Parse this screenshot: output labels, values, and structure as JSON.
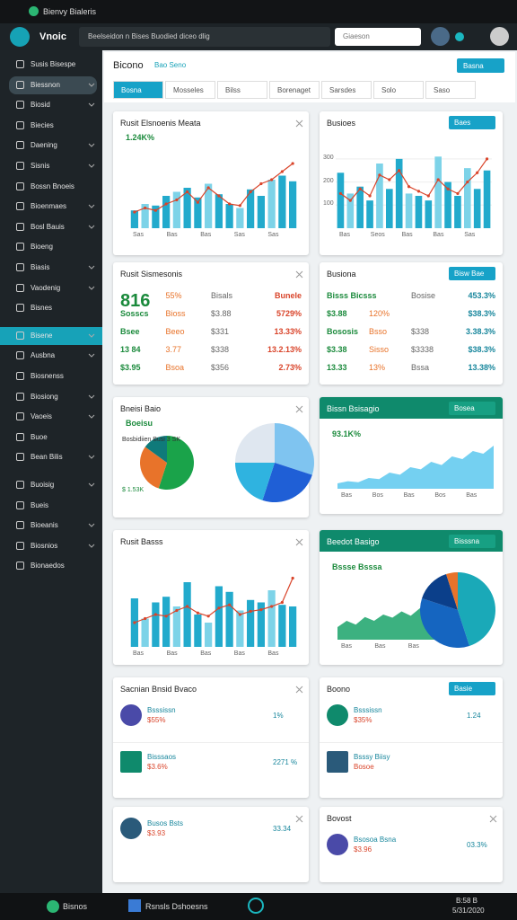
{
  "window": {
    "title": "Bienvy Bialeris"
  },
  "header": {
    "app": "Vnoic",
    "breadcrumb": "Beelseidon n Bises Buodied diceo dlig",
    "search": "Giaeson"
  },
  "sidebar": {
    "items": [
      "Susis Bisespe",
      "Biessnon",
      "Biosid",
      "Biecies",
      "Daening",
      "Sisnis",
      "Bossn Bnoeis",
      "Bioenmaes",
      "Bosl Bauis",
      "Bioeng",
      "Biasis",
      "Vaodenig",
      "Bisnes",
      "Bisene",
      "Ausbna",
      "Biosnenss",
      "Biosiong",
      "Vaoeis",
      "Buoe",
      "Bean Bilis",
      "Buoisig",
      "Bueis",
      "Bioeanis",
      "Biosnios",
      "Bionaedos"
    ],
    "active": [
      1,
      13
    ]
  },
  "main": {
    "title": "Bicono",
    "tag": "Bao Seno",
    "button": "Basna",
    "tabs": [
      "Bosna",
      "Mosseles",
      "Bilss",
      "Borenaget",
      "Sarsdes",
      "Solo",
      "Saso"
    ]
  },
  "cards": [
    {
      "title": "Rusit Elsnoenis Meata",
      "sub": "1.24K%",
      "chart": {
        "kind": "bar-line",
        "bars": [
          22,
          30,
          28,
          40,
          45,
          50,
          38,
          55,
          42,
          30,
          25,
          48,
          40,
          60,
          65,
          58
        ],
        "line": [
          20,
          25,
          22,
          30,
          35,
          45,
          32,
          50,
          40,
          30,
          28,
          45,
          55,
          60,
          70,
          80
        ],
        "ylim": [
          0,
          100
        ],
        "xlabels": [
          "Sas",
          "Bas",
          "Bas",
          "Sas",
          "Sas"
        ]
      }
    },
    {
      "title": "Busioes",
      "button": "Baes",
      "chart": {
        "kind": "bar-line",
        "bars": [
          240,
          150,
          180,
          120,
          280,
          170,
          300,
          150,
          140,
          120,
          310,
          200,
          140,
          260,
          170,
          250
        ],
        "line": [
          150,
          120,
          170,
          140,
          230,
          210,
          250,
          180,
          160,
          140,
          210,
          170,
          150,
          200,
          240,
          300
        ],
        "ylim": [
          0,
          350
        ],
        "yticks": [
          100,
          200,
          300
        ],
        "xlabels": [
          "Bas",
          "Seos",
          "Bas",
          "Bas",
          "Sas"
        ]
      }
    },
    {
      "title": "Rusit Sismesonis",
      "rows": [
        [
          "816",
          "55%",
          "Bisals",
          "Bunele"
        ],
        [
          "Sosscs",
          "Bioss",
          "$3.88",
          "5729%"
        ],
        [
          "Bsee",
          "Beeo",
          "$331",
          "13.33%"
        ],
        [
          "13 84",
          "3.77",
          "$338",
          "13.2.13%"
        ],
        [
          "$3.95",
          "Bsoa",
          "$356",
          "2.73%"
        ]
      ],
      "colors": [
        "#1b8a3c",
        "#e8732a",
        "#666666",
        "#d9442a"
      ]
    },
    {
      "title": "Busiona",
      "button": "Bisw Bae",
      "rows": [
        [
          "Bisss Bicsss",
          "",
          "Bosise",
          "453.3%"
        ],
        [
          "$3.88",
          "120%",
          "",
          "$38.3%"
        ],
        [
          "Bososis",
          "Bsso",
          "$338",
          "3.38.3%"
        ],
        [
          "$3.38",
          "Sisso",
          "$3338",
          "$38.3%"
        ],
        [
          "13.33",
          "13%",
          "Bssa",
          "13.38%"
        ]
      ],
      "colors": [
        "#1b8a3c",
        "#e8732a",
        "#666666",
        "#17869c"
      ]
    },
    {
      "title": "Bneisi Baio",
      "sub": "Boeisu",
      "pies": [
        {
          "values": [
            55,
            30,
            15
          ],
          "colors": [
            "#1aa34a",
            "#e8732a",
            "#0f7a7a"
          ]
        },
        {
          "values": [
            30,
            25,
            20,
            25
          ],
          "colors": [
            "#7fc4f0",
            "#1f5fd6",
            "#2fb3e0",
            "#dfe7f0"
          ]
        }
      ],
      "legend": [
        "Bosbidiien Busi 3 SK",
        "$ 1.53K"
      ]
    },
    {
      "title": "Bissn Bsisagio",
      "button": "Bosea",
      "sub": "93.1K%",
      "green": true,
      "chart": {
        "kind": "area",
        "values": [
          10,
          14,
          12,
          20,
          18,
          30,
          26,
          40,
          36,
          50,
          44,
          60,
          55,
          70,
          65,
          80
        ],
        "ylim": [
          0,
          100
        ],
        "xlabels": [
          "Bas",
          "Bos",
          "Bas",
          "Bos",
          "Bas"
        ]
      }
    },
    {
      "title": "Rusit Basss",
      "chart": {
        "kind": "bar-line",
        "bars": [
          60,
          35,
          55,
          62,
          50,
          80,
          40,
          30,
          75,
          68,
          45,
          58,
          55,
          70,
          52,
          50
        ],
        "line": [
          30,
          35,
          40,
          38,
          45,
          50,
          42,
          38,
          48,
          52,
          40,
          44,
          46,
          50,
          55,
          85
        ],
        "ylim": [
          0,
          100
        ],
        "xlabels": [
          "Bas",
          "Bas",
          "Bas",
          "Bas",
          "Bas"
        ]
      }
    },
    {
      "title": "Beedot Basigo",
      "button": "Bisssna",
      "sub": "Bssse Bsssa",
      "green": true,
      "chart": {
        "kind": "area",
        "values": [
          20,
          30,
          24,
          36,
          30,
          40,
          35,
          45,
          38,
          50,
          42,
          48
        ],
        "ylim": [
          0,
          100
        ],
        "xlabels": [
          "Bas",
          "Bas",
          "Bas"
        ]
      },
      "pies": [
        {
          "values": [
            45,
            35,
            15,
            5
          ],
          "colors": [
            "#1aa9b8",
            "#1565c0",
            "#0b3f8a",
            "#e8732a"
          ]
        }
      ]
    },
    {
      "title": "Sacnian Bnsid Bvaco",
      "items": [
        {
          "name": "Bsssissn",
          "value": "$55%",
          "extra": "1%"
        },
        {
          "name": "Bisssaos",
          "value": "$3.6%",
          "extra": "2271 %"
        }
      ]
    },
    {
      "title": "Boono",
      "button": "Basie",
      "items": [
        {
          "name": "Bsssissn",
          "value": "$35%",
          "extra": "1.24"
        },
        {
          "name": "Bsssy Biisy",
          "value": "Bosoe",
          "extra": ""
        }
      ]
    },
    {
      "title": "",
      "items": [
        {
          "name": "Busos Bsts",
          "value": "$3.93",
          "extra": "33.34"
        }
      ]
    },
    {
      "title": "Bovost",
      "items": [
        {
          "name": "Bsosoa Bsna",
          "value": "$3.96",
          "extra": "03.3%"
        }
      ]
    }
  ],
  "taskbar": {
    "search": "Bisnos",
    "app": "Rsnsls Dshoesns",
    "time": "B:58 B",
    "date": "5/31/2020"
  }
}
